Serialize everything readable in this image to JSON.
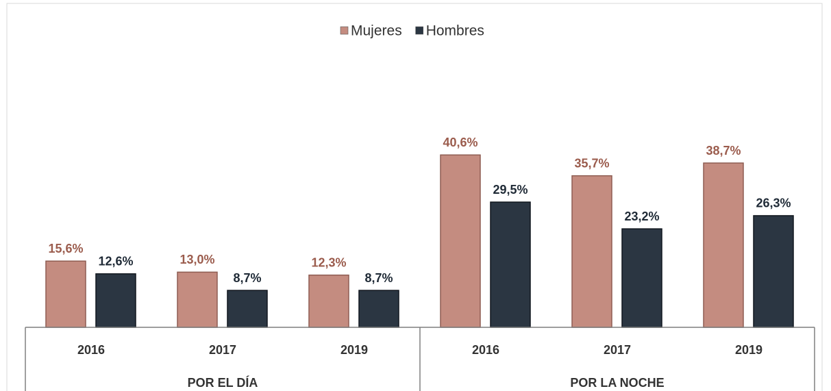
{
  "chart_data": {
    "type": "bar",
    "groups": [
      {
        "name": "POR EL DÍA",
        "categories": [
          "2016",
          "2017",
          "2019"
        ]
      },
      {
        "name": "POR LA NOCHE",
        "categories": [
          "2016",
          "2017",
          "2019"
        ]
      }
    ],
    "series": [
      {
        "name": "Mujeres",
        "color": "#c48c80",
        "label_color": "#9b5c4d",
        "values": [
          15.6,
          13.0,
          12.3,
          40.6,
          35.7,
          38.7
        ],
        "value_labels": [
          "15,6%",
          "13,0%",
          "12,3%",
          "40,6%",
          "35,7%",
          "38,7%"
        ]
      },
      {
        "name": "Hombres",
        "color": "#2b3642",
        "label_color": "#1f2a36",
        "values": [
          12.6,
          8.7,
          8.7,
          29.5,
          23.2,
          26.3
        ],
        "value_labels": [
          "12,6%",
          "8,7%",
          "8,7%",
          "29,5%",
          "23,2%",
          "26,3%"
        ]
      }
    ],
    "ylim": [
      0,
      60
    ],
    "legend": "top",
    "grid": false
  }
}
